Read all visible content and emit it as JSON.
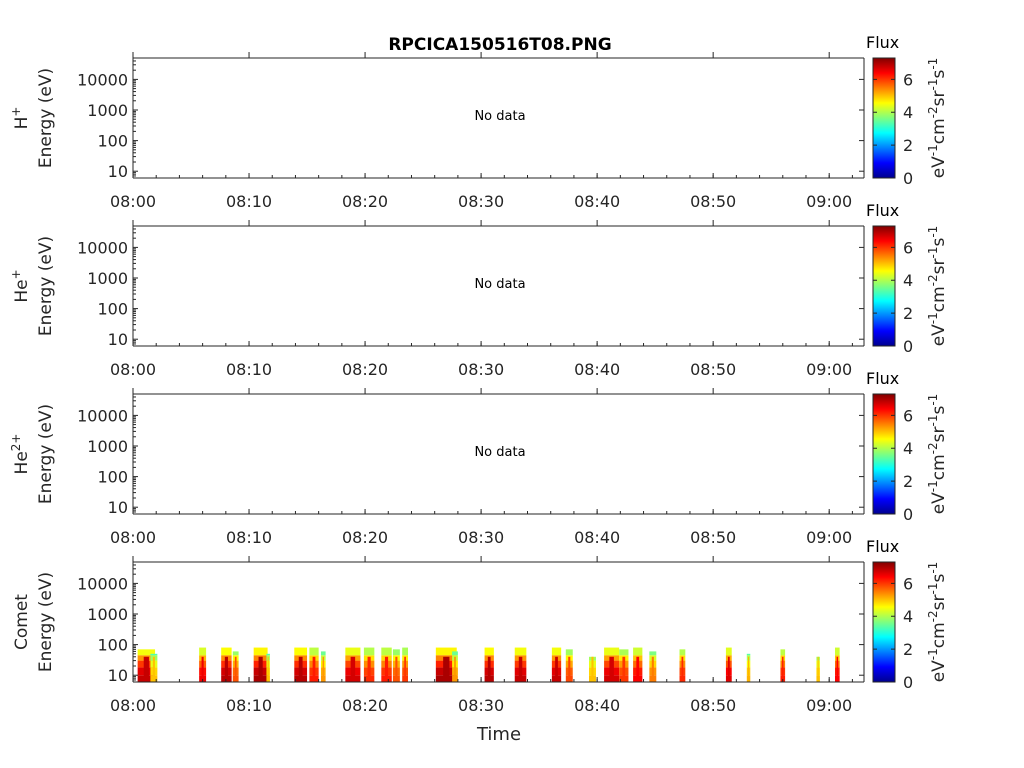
{
  "title": "RPCICA150516T08.PNG",
  "xlabel": "Time",
  "colorbar": {
    "title": "Flux",
    "ticks": [
      "0",
      "2",
      "4",
      "6"
    ],
    "range": [
      0,
      7.3
    ],
    "label_parts": [
      "eV",
      "-1",
      "cm",
      "-2",
      "sr",
      "-1",
      "s",
      "-1"
    ]
  },
  "chart_data": [
    {
      "type": "heatmap",
      "species": "H",
      "species_sup": "+",
      "ylabel": "Energy (eV)",
      "yscale": "log",
      "ylim": [
        6,
        50000
      ],
      "yticks": [
        10,
        100,
        1000,
        10000
      ],
      "ytick_labels": [
        "10",
        "100",
        "1000",
        "10000"
      ],
      "xlim": [
        "08:00",
        "09:03"
      ],
      "xtick_labels": [
        "08:00",
        "08:10",
        "08:20",
        "08:30",
        "08:40",
        "08:50",
        "09:00"
      ],
      "annotation": "No data",
      "bursts": []
    },
    {
      "type": "heatmap",
      "species": "He",
      "species_sup": "+",
      "ylabel": "Energy (eV)",
      "yscale": "log",
      "ylim": [
        6,
        50000
      ],
      "yticks": [
        10,
        100,
        1000,
        10000
      ],
      "ytick_labels": [
        "10",
        "100",
        "1000",
        "10000"
      ],
      "xlim": [
        "08:00",
        "09:03"
      ],
      "xtick_labels": [
        "08:00",
        "08:10",
        "08:20",
        "08:30",
        "08:40",
        "08:50",
        "09:00"
      ],
      "annotation": "No data",
      "bursts": []
    },
    {
      "type": "heatmap",
      "species": "He",
      "species_sup": "2+",
      "ylabel": "Energy (eV)",
      "yscale": "log",
      "ylim": [
        6,
        50000
      ],
      "yticks": [
        10,
        100,
        1000,
        10000
      ],
      "ytick_labels": [
        "10",
        "100",
        "1000",
        "10000"
      ],
      "xlim": [
        "08:00",
        "09:03"
      ],
      "xtick_labels": [
        "08:00",
        "08:10",
        "08:20",
        "08:30",
        "08:40",
        "08:50",
        "09:00"
      ],
      "annotation": "No data",
      "bursts": []
    },
    {
      "type": "heatmap",
      "species": "Comet",
      "species_sup": "",
      "ylabel": "Energy (eV)",
      "yscale": "log",
      "ylim": [
        6,
        50000
      ],
      "yticks": [
        10,
        100,
        1000,
        10000
      ],
      "ytick_labels": [
        "10",
        "100",
        "1000",
        "10000"
      ],
      "xlim": [
        "08:00",
        "09:03"
      ],
      "xtick_labels": [
        "08:00",
        "08:10",
        "08:20",
        "08:30",
        "08:40",
        "08:50",
        "09:00"
      ],
      "annotation": "",
      "flux_units": "log10 flux",
      "bursts": [
        {
          "t": 0.4,
          "w": 1.5,
          "emax": 70,
          "flux": 6.8
        },
        {
          "t": 1.5,
          "w": 0.6,
          "emax": 50,
          "flux": 5.0
        },
        {
          "t": 5.7,
          "w": 0.6,
          "emax": 80,
          "flux": 6.5
        },
        {
          "t": 7.6,
          "w": 0.9,
          "emax": 80,
          "flux": 6.9
        },
        {
          "t": 8.6,
          "w": 0.5,
          "emax": 60,
          "flux": 5.8
        },
        {
          "t": 10.4,
          "w": 1.2,
          "emax": 80,
          "flux": 7.0
        },
        {
          "t": 11.5,
          "w": 0.3,
          "emax": 50,
          "flux": 5.0
        },
        {
          "t": 13.9,
          "w": 1.1,
          "emax": 80,
          "flux": 6.9
        },
        {
          "t": 15.2,
          "w": 0.8,
          "emax": 80,
          "flux": 6.2
        },
        {
          "t": 16.2,
          "w": 0.4,
          "emax": 60,
          "flux": 5.3
        },
        {
          "t": 18.3,
          "w": 1.3,
          "emax": 80,
          "flux": 6.7
        },
        {
          "t": 19.9,
          "w": 0.9,
          "emax": 80,
          "flux": 6.1
        },
        {
          "t": 21.4,
          "w": 0.9,
          "emax": 80,
          "flux": 6.2
        },
        {
          "t": 22.4,
          "w": 0.6,
          "emax": 70,
          "flux": 5.8
        },
        {
          "t": 23.2,
          "w": 0.5,
          "emax": 80,
          "flux": 6.0
        },
        {
          "t": 26.1,
          "w": 1.8,
          "emax": 80,
          "flux": 7.0
        },
        {
          "t": 27.5,
          "w": 0.5,
          "emax": 60,
          "flux": 5.3
        },
        {
          "t": 30.3,
          "w": 0.8,
          "emax": 80,
          "flux": 6.9
        },
        {
          "t": 32.9,
          "w": 1.0,
          "emax": 80,
          "flux": 6.8
        },
        {
          "t": 36.1,
          "w": 0.8,
          "emax": 80,
          "flux": 6.8
        },
        {
          "t": 37.3,
          "w": 0.6,
          "emax": 70,
          "flux": 5.9
        },
        {
          "t": 39.3,
          "w": 0.6,
          "emax": 40,
          "flux": 5.0
        },
        {
          "t": 40.6,
          "w": 1.3,
          "emax": 80,
          "flux": 6.7
        },
        {
          "t": 41.9,
          "w": 0.8,
          "emax": 70,
          "flux": 6.0
        },
        {
          "t": 43.1,
          "w": 0.8,
          "emax": 80,
          "flux": 6.4
        },
        {
          "t": 44.5,
          "w": 0.6,
          "emax": 60,
          "flux": 5.5
        },
        {
          "t": 47.1,
          "w": 0.5,
          "emax": 70,
          "flux": 6.1
        },
        {
          "t": 51.1,
          "w": 0.5,
          "emax": 80,
          "flux": 6.6
        },
        {
          "t": 52.9,
          "w": 0.3,
          "emax": 50,
          "flux": 5.1
        },
        {
          "t": 55.8,
          "w": 0.4,
          "emax": 70,
          "flux": 6.2
        },
        {
          "t": 58.9,
          "w": 0.3,
          "emax": 40,
          "flux": 5.0
        },
        {
          "t": 60.5,
          "w": 0.4,
          "emax": 80,
          "flux": 6.4
        }
      ]
    }
  ]
}
